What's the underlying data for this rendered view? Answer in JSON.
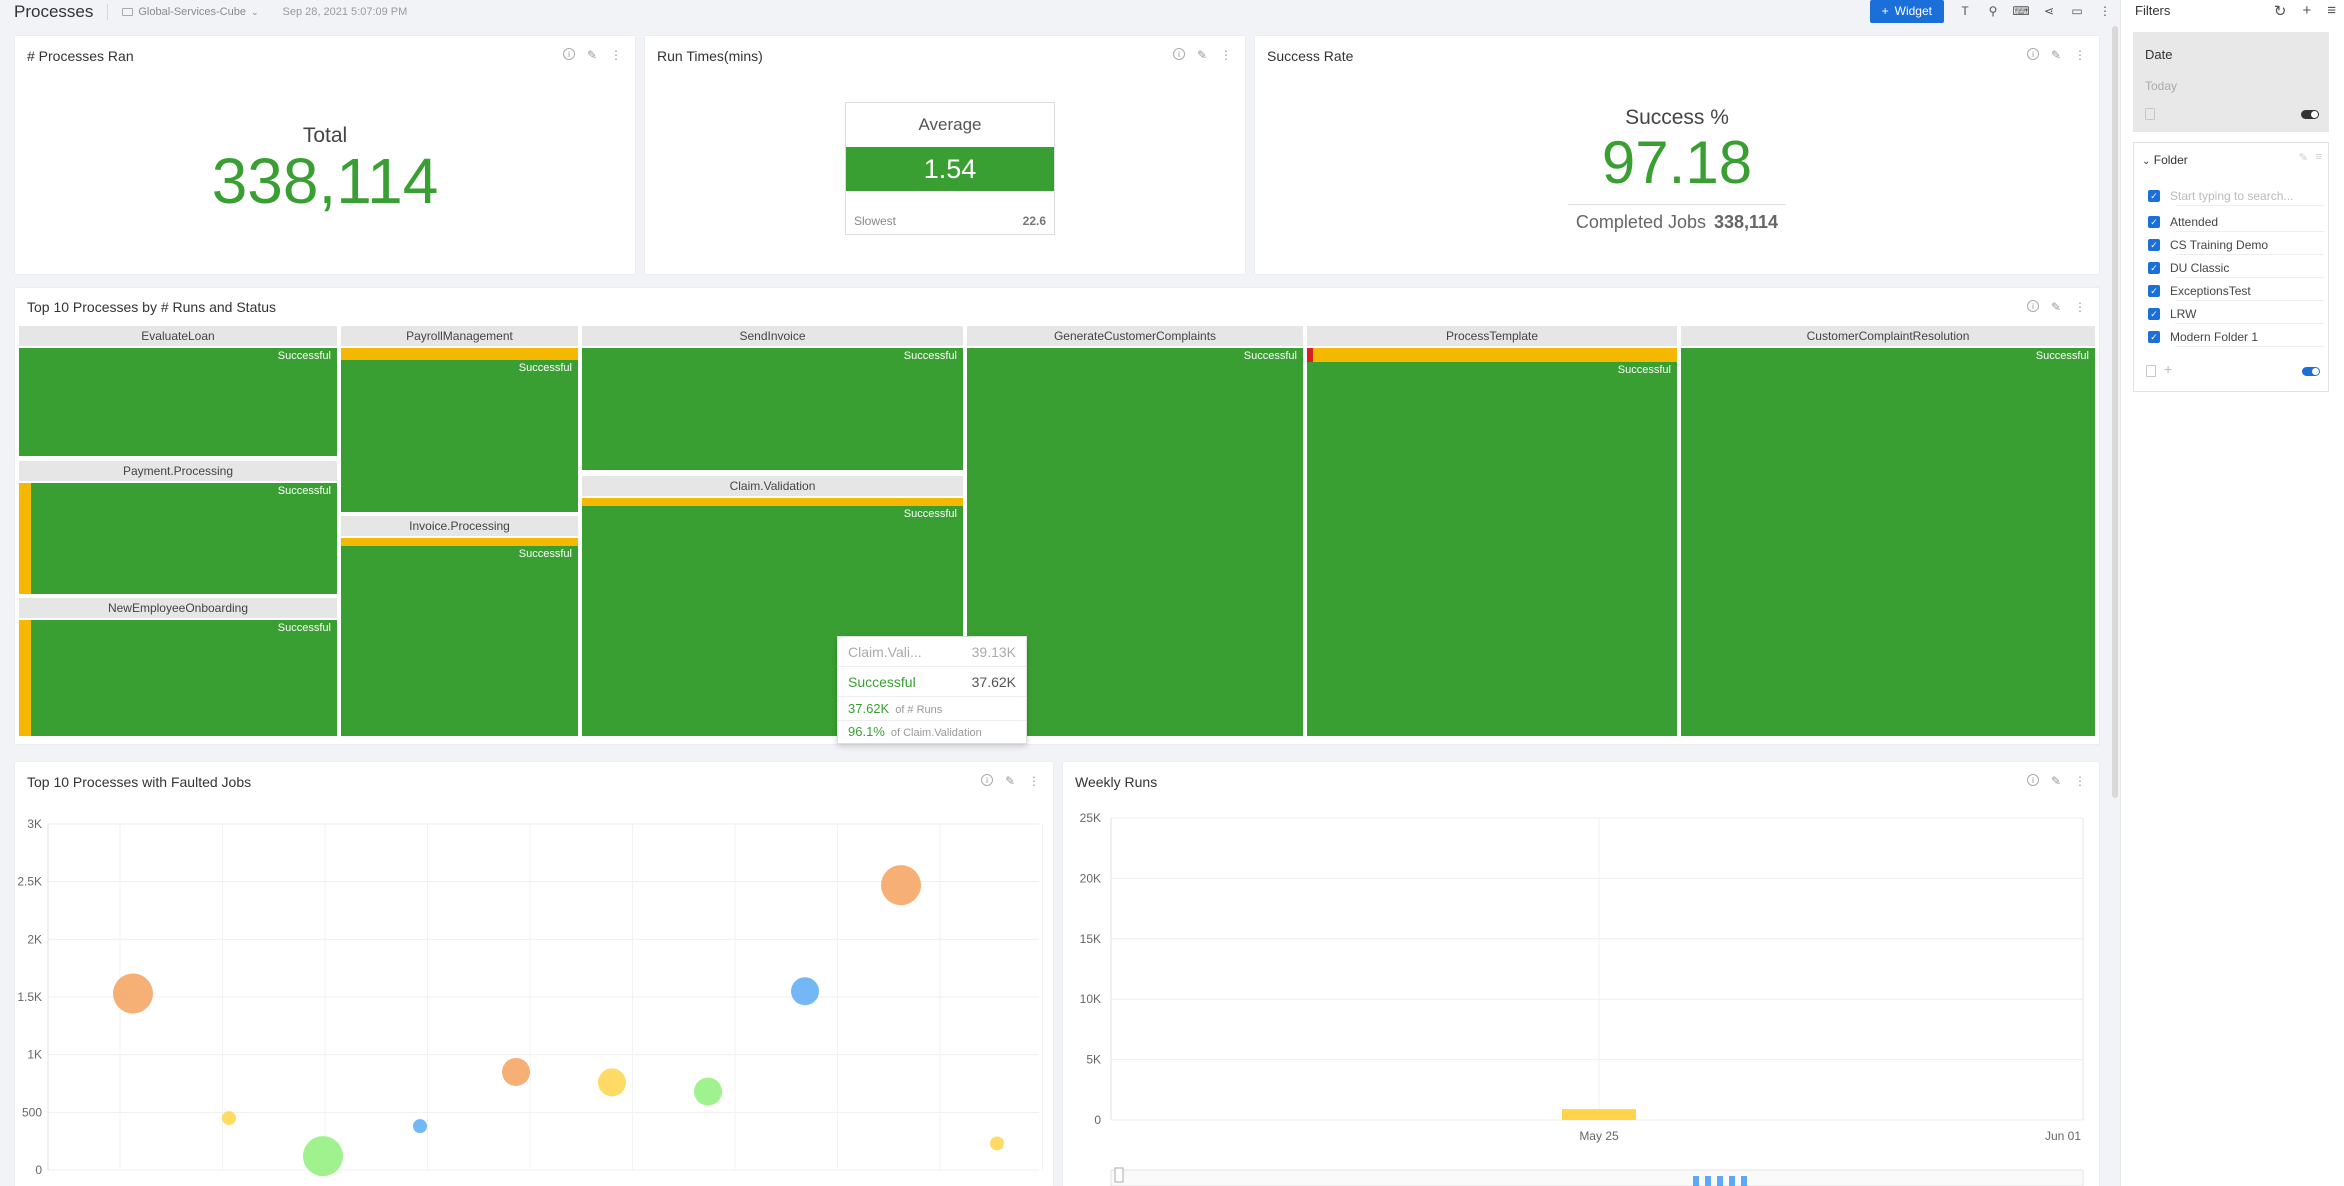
{
  "header": {
    "title": "Processes",
    "cube": "Global-Services-Cube",
    "date": "Sep 28, 2021 5:07:09 PM",
    "widget_label": "Widget"
  },
  "kpi_runs": {
    "title": "# Processes Ran",
    "label": "Total",
    "value": "338,114"
  },
  "kpi_time": {
    "title": "Run Times(mins)",
    "label": "Average",
    "value": "1.54",
    "slowest_label": "Slowest",
    "slowest_value": "22.6"
  },
  "kpi_success": {
    "title": "Success Rate",
    "label": "Success %",
    "value": "97.18",
    "completed_label": "Completed Jobs",
    "completed_value": "338,114"
  },
  "treemap": {
    "title": "Top 10 Processes by # Runs and Status",
    "status_label": "Successful",
    "processes": [
      "EvaluateLoan",
      "PayrollManagement",
      "SendInvoice",
      "GenerateCustomerComplaints",
      "ProcessTemplate",
      "CustomerComplaintResolution",
      "Payment.Processing",
      "Invoice.Processing",
      "Claim.Validation",
      "NewEmployeeOnboarding"
    ],
    "colors": {
      "successful": "#3a9f32",
      "faulted": "#f5b800",
      "stopped": "#d6201e"
    }
  },
  "tooltip": {
    "name": "Claim.Vali...",
    "total": "39.13K",
    "status": "Successful",
    "status_value": "37.62K",
    "runs_value": "37.62K",
    "runs_label": "of # Runs",
    "pct_value": "96.1%",
    "pct_label": "of Claim.Validation"
  },
  "faulted_chart": {
    "title": "Top 10 Processes with Faulted Jobs",
    "y_ticks": [
      "3K",
      "2.5K",
      "2K",
      "1.5K",
      "1K",
      "500",
      "0"
    ]
  },
  "weekly_chart": {
    "title": "Weekly Runs",
    "y_ticks": [
      "25K",
      "20K",
      "15K",
      "10K",
      "5K",
      "0"
    ],
    "x_ticks": [
      "May 25",
      "Jun 01"
    ]
  },
  "chart_data": [
    {
      "type": "scatter",
      "title": "Top 10 Processes with Faulted Jobs",
      "ylim": [
        0,
        3000
      ],
      "points": [
        {
          "x": 1,
          "y": 1530,
          "size": "large",
          "color": "#f4a15d"
        },
        {
          "x": 2,
          "y": 450,
          "size": "small",
          "color": "#ffd44a"
        },
        {
          "x": 3,
          "y": 120,
          "size": "large",
          "color": "#8ef07a"
        },
        {
          "x": 4,
          "y": 380,
          "size": "small",
          "color": "#5caaf5"
        },
        {
          "x": 5,
          "y": 850,
          "size": "medium",
          "color": "#f4a15d"
        },
        {
          "x": 6,
          "y": 760,
          "size": "medium",
          "color": "#ffd44a"
        },
        {
          "x": 7,
          "y": 680,
          "size": "medium",
          "color": "#8ef07a"
        },
        {
          "x": 8,
          "y": 1550,
          "size": "medium",
          "color": "#5caaf5"
        },
        {
          "x": 9,
          "y": 2470,
          "size": "large",
          "color": "#f4a15d"
        },
        {
          "x": 10,
          "y": 230,
          "size": "small",
          "color": "#ffd44a"
        }
      ]
    },
    {
      "type": "bar",
      "title": "Weekly Runs",
      "categories": [
        "May 25"
      ],
      "values": [
        900
      ],
      "ylim": [
        0,
        25000
      ],
      "color": "#ffd44a"
    }
  ],
  "filters": {
    "title": "Filters",
    "date_title": "Date",
    "date_value": "Today",
    "folder_title": "Folder",
    "search_placeholder": "Start typing to search...",
    "folders": [
      "Attended",
      "CS Training Demo",
      "DU Classic",
      "ExceptionsTest",
      "LRW",
      "Modern Folder 1"
    ]
  }
}
